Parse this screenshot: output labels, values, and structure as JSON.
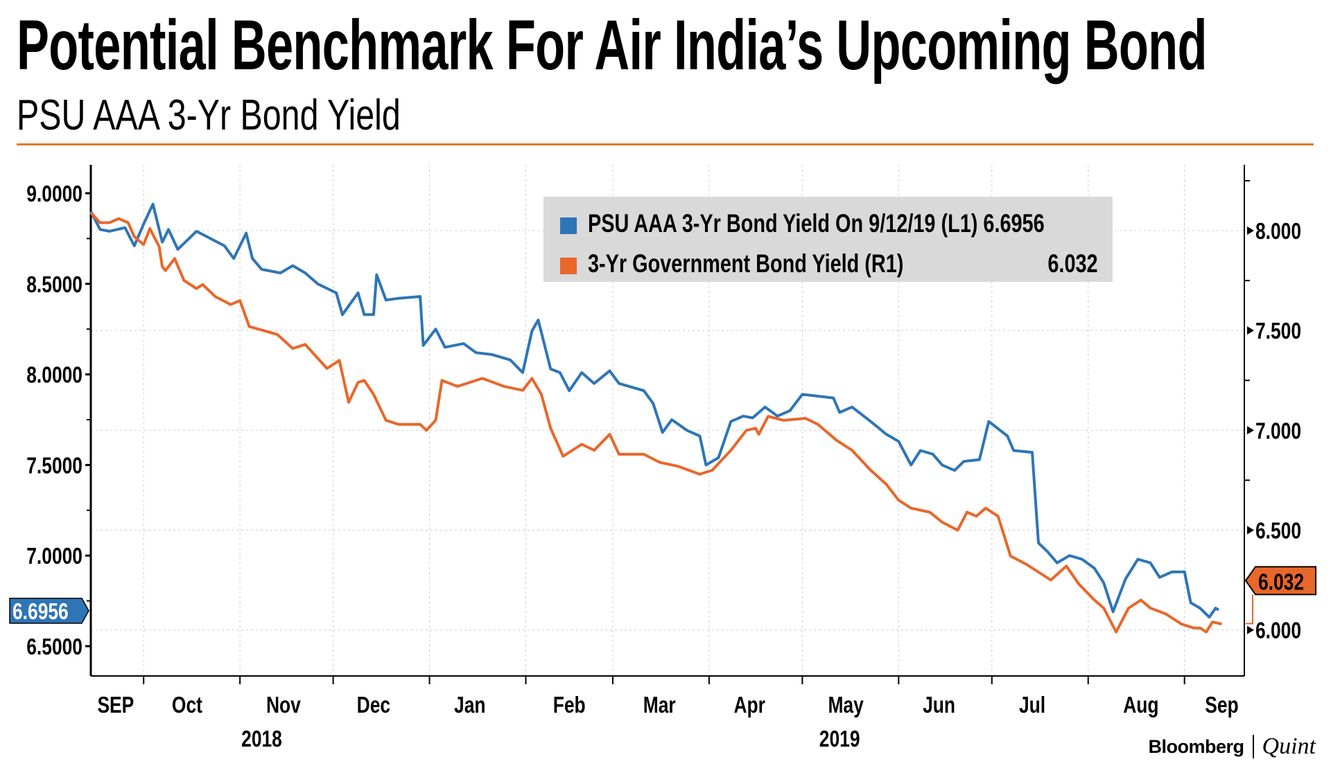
{
  "title": "Potential Benchmark For Air India’s Upcoming Bond",
  "subtitle": "PSU AAA 3-Yr Bond Yield",
  "brand": {
    "name": "Bloomberg",
    "sub": "Quint"
  },
  "colors": {
    "blue": "#2e75b6",
    "orange": "#e8672a",
    "rule": "#e87722",
    "legend_bg": "#d9d9d9"
  },
  "chart_data": {
    "type": "line",
    "title": "PSU AAA 3-Yr Bond Yield",
    "x_unit": "days since 2018-09-14",
    "xlim": [
      0,
      365
    ],
    "month_ticks": [
      17,
      48,
      78,
      109,
      140,
      168,
      199,
      229,
      260,
      290,
      321,
      352
    ],
    "month_labels": [
      {
        "label": "SEP",
        "x": 8
      },
      {
        "label": "Oct",
        "x": 31
      },
      {
        "label": "Nov",
        "x": 62
      },
      {
        "label": "Dec",
        "x": 91
      },
      {
        "label": "Jan",
        "x": 122
      },
      {
        "label": "Feb",
        "x": 154
      },
      {
        "label": "Mar",
        "x": 183
      },
      {
        "label": "Apr",
        "x": 212
      },
      {
        "label": "May",
        "x": 243
      },
      {
        "label": "Jun",
        "x": 273
      },
      {
        "label": "Jul",
        "x": 303
      },
      {
        "label": "Aug",
        "x": 338
      },
      {
        "label": "Sep",
        "x": 364
      }
    ],
    "year_labels": [
      {
        "label": "2018",
        "x": 55
      },
      {
        "label": "2019",
        "x": 241
      }
    ],
    "left_axis": {
      "ylim": [
        6.3,
        9.18
      ],
      "ticks": [
        "9.0000",
        "8.5000",
        "8.0000",
        "7.5000",
        "7.0000",
        "6.5000"
      ],
      "tag": "6.6956"
    },
    "right_axis": {
      "ylim": [
        5.76,
        8.32
      ],
      "ticks": [
        "8.000",
        "7.500",
        "7.000",
        "6.500",
        "6.000"
      ],
      "tag": "6.032"
    },
    "grid": true,
    "legend_position": "top-center",
    "series": [
      {
        "name": "PSU AAA 3-Yr Bond Yield On 9/12/19 (L1)",
        "last": "6.6956",
        "axis": "left",
        "color": "#2e75b6",
        "points": [
          [
            0,
            8.9
          ],
          [
            3,
            8.8
          ],
          [
            6,
            8.79
          ],
          [
            11,
            8.81
          ],
          [
            14,
            8.71
          ],
          [
            17,
            8.83
          ],
          [
            20,
            8.94
          ],
          [
            23,
            8.73
          ],
          [
            25,
            8.8
          ],
          [
            28,
            8.69
          ],
          [
            34,
            8.79
          ],
          [
            43,
            8.71
          ],
          [
            46,
            8.64
          ],
          [
            50,
            8.78
          ],
          [
            52,
            8.64
          ],
          [
            55,
            8.58
          ],
          [
            61,
            8.56
          ],
          [
            65,
            8.6
          ],
          [
            69,
            8.56
          ],
          [
            73,
            8.5
          ],
          [
            79,
            8.45
          ],
          [
            81,
            8.33
          ],
          [
            86,
            8.45
          ],
          [
            88,
            8.33
          ],
          [
            91,
            8.33
          ],
          [
            92,
            8.55
          ],
          [
            95,
            8.41
          ],
          [
            99,
            8.42
          ],
          [
            106,
            8.43
          ],
          [
            107,
            8.16
          ],
          [
            111,
            8.25
          ],
          [
            114,
            8.15
          ],
          [
            120,
            8.17
          ],
          [
            124,
            8.12
          ],
          [
            129,
            8.11
          ],
          [
            135,
            8.08
          ],
          [
            139,
            8.01
          ],
          [
            142,
            8.24
          ],
          [
            144,
            8.3
          ],
          [
            148,
            8.03
          ],
          [
            151,
            8.01
          ],
          [
            154,
            7.91
          ],
          [
            158,
            8.01
          ],
          [
            162,
            7.95
          ],
          [
            167,
            8.02
          ],
          [
            170,
            7.95
          ],
          [
            178,
            7.91
          ],
          [
            181,
            7.84
          ],
          [
            184,
            7.68
          ],
          [
            187,
            7.75
          ],
          [
            192,
            7.69
          ],
          [
            196,
            7.66
          ],
          [
            198,
            7.5
          ],
          [
            202,
            7.54
          ],
          [
            206,
            7.74
          ],
          [
            210,
            7.77
          ],
          [
            213,
            7.76
          ],
          [
            217,
            7.82
          ],
          [
            221,
            7.77
          ],
          [
            225,
            7.8
          ],
          [
            229,
            7.89
          ],
          [
            234,
            7.88
          ],
          [
            239,
            7.87
          ],
          [
            241,
            7.79
          ],
          [
            245,
            7.82
          ],
          [
            251,
            7.74
          ],
          [
            256,
            7.67
          ],
          [
            260,
            7.63
          ],
          [
            264,
            7.5
          ],
          [
            267,
            7.58
          ],
          [
            271,
            7.56
          ],
          [
            274,
            7.5
          ],
          [
            278,
            7.47
          ],
          [
            281,
            7.52
          ],
          [
            286,
            7.53
          ],
          [
            289,
            7.74
          ],
          [
            295,
            7.66
          ],
          [
            297,
            7.58
          ],
          [
            303,
            7.57
          ],
          [
            305,
            7.07
          ],
          [
            308,
            7.02
          ],
          [
            311,
            6.96
          ],
          [
            315,
            7.0
          ],
          [
            319,
            6.98
          ],
          [
            323,
            6.93
          ],
          [
            326,
            6.85
          ],
          [
            329,
            6.69
          ],
          [
            333,
            6.87
          ],
          [
            337,
            6.98
          ],
          [
            341,
            6.96
          ],
          [
            344,
            6.88
          ],
          [
            348,
            6.91
          ],
          [
            352,
            6.91
          ],
          [
            354,
            6.74
          ],
          [
            357,
            6.71
          ],
          [
            360,
            6.66
          ],
          [
            362,
            6.71
          ],
          [
            363,
            6.7
          ]
        ]
      },
      {
        "name": "3-Yr Government Bond Yield (R1)",
        "last": "6.032",
        "axis": "right",
        "color": "#e8672a",
        "points": [
          [
            0,
            8.09
          ],
          [
            3,
            8.04
          ],
          [
            6,
            8.04
          ],
          [
            9,
            8.06
          ],
          [
            12,
            8.04
          ],
          [
            14,
            7.97
          ],
          [
            17,
            7.93
          ],
          [
            19,
            8.01
          ],
          [
            22,
            7.92
          ],
          [
            23,
            7.82
          ],
          [
            24,
            7.8
          ],
          [
            27,
            7.86
          ],
          [
            30,
            7.75
          ],
          [
            34,
            7.71
          ],
          [
            36,
            7.73
          ],
          [
            40,
            7.67
          ],
          [
            45,
            7.63
          ],
          [
            48,
            7.65
          ],
          [
            51,
            7.52
          ],
          [
            60,
            7.48
          ],
          [
            65,
            7.41
          ],
          [
            69,
            7.43
          ],
          [
            76,
            7.31
          ],
          [
            80,
            7.35
          ],
          [
            83,
            7.14
          ],
          [
            86,
            7.24
          ],
          [
            88,
            7.25
          ],
          [
            91,
            7.18
          ],
          [
            95,
            7.05
          ],
          [
            99,
            7.03
          ],
          [
            106,
            7.03
          ],
          [
            108,
            7.0
          ],
          [
            111,
            7.05
          ],
          [
            113,
            7.25
          ],
          [
            118,
            7.22
          ],
          [
            122,
            7.24
          ],
          [
            126,
            7.26
          ],
          [
            133,
            7.22
          ],
          [
            139,
            7.2
          ],
          [
            142,
            7.26
          ],
          [
            145,
            7.18
          ],
          [
            148,
            7.01
          ],
          [
            152,
            6.87
          ],
          [
            158,
            6.93
          ],
          [
            162,
            6.9
          ],
          [
            167,
            6.98
          ],
          [
            170,
            6.88
          ],
          [
            178,
            6.88
          ],
          [
            183,
            6.84
          ],
          [
            189,
            6.82
          ],
          [
            196,
            6.78
          ],
          [
            200,
            6.8
          ],
          [
            206,
            6.9
          ],
          [
            211,
            7.0
          ],
          [
            214,
            7.01
          ],
          [
            215,
            6.98
          ],
          [
            218,
            7.07
          ],
          [
            223,
            7.05
          ],
          [
            230,
            7.06
          ],
          [
            234,
            7.03
          ],
          [
            240,
            6.95
          ],
          [
            245,
            6.9
          ],
          [
            251,
            6.8
          ],
          [
            256,
            6.73
          ],
          [
            260,
            6.65
          ],
          [
            264,
            6.61
          ],
          [
            270,
            6.59
          ],
          [
            274,
            6.54
          ],
          [
            279,
            6.5
          ],
          [
            282,
            6.59
          ],
          [
            285,
            6.57
          ],
          [
            288,
            6.61
          ],
          [
            292,
            6.57
          ],
          [
            296,
            6.37
          ],
          [
            301,
            6.33
          ],
          [
            305,
            6.29
          ],
          [
            309,
            6.25
          ],
          [
            314,
            6.32
          ],
          [
            318,
            6.23
          ],
          [
            323,
            6.15
          ],
          [
            326,
            6.11
          ],
          [
            330,
            5.99
          ],
          [
            334,
            6.11
          ],
          [
            338,
            6.15
          ],
          [
            341,
            6.11
          ],
          [
            346,
            6.08
          ],
          [
            351,
            6.03
          ],
          [
            355,
            6.01
          ],
          [
            357,
            6.01
          ],
          [
            359,
            5.99
          ],
          [
            361,
            6.04
          ],
          [
            364,
            6.03
          ]
        ]
      }
    ]
  }
}
